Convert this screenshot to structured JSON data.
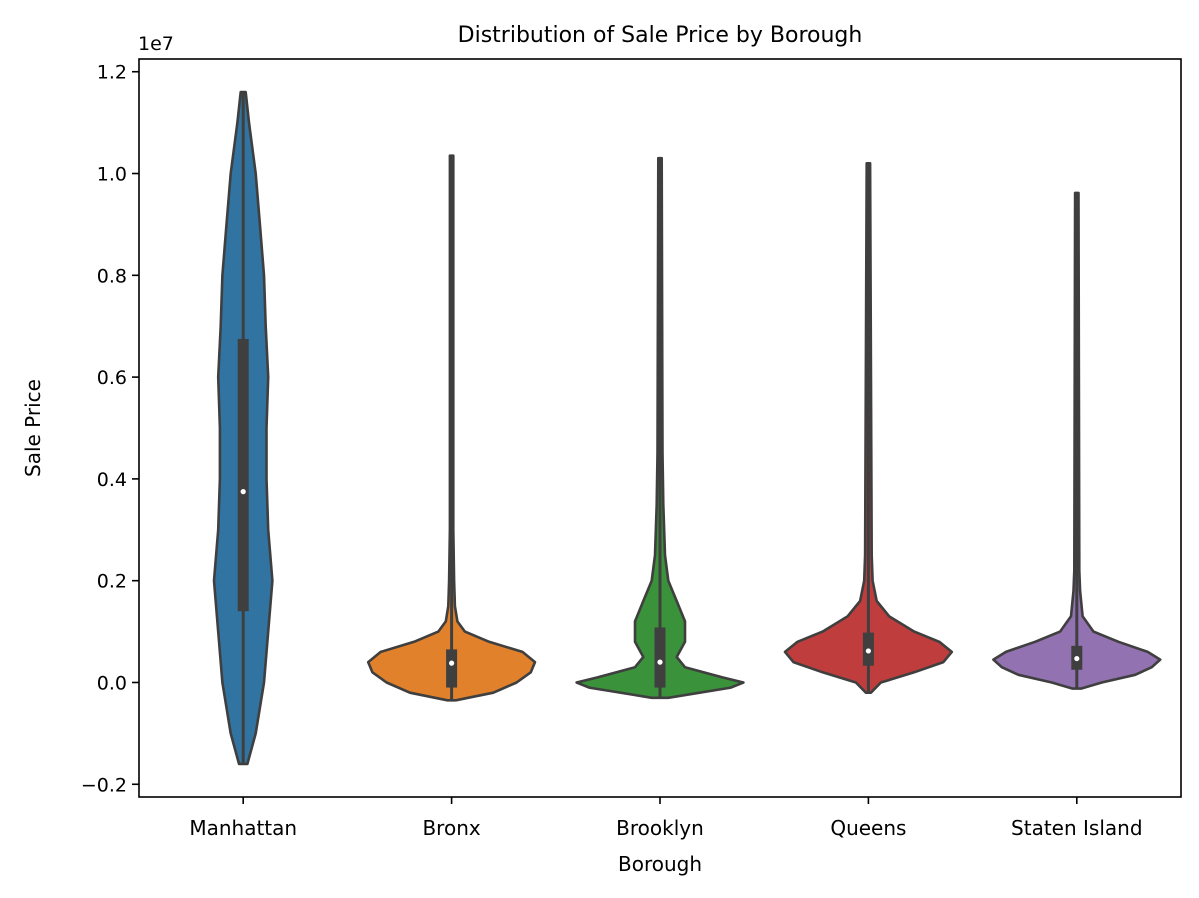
{
  "chart_data": {
    "type": "violin",
    "title": "Distribution of Sale Price by Borough",
    "xlabel": "Borough",
    "ylabel": "Sale Price",
    "y_offset_text": "1e7",
    "ylim": [
      -2250000,
      12250000
    ],
    "yticks": [
      -0.2,
      0.0,
      0.2,
      0.4,
      0.6,
      0.8,
      1.0,
      1.2
    ],
    "ytick_labels": [
      "−0.2",
      "0.0",
      "0.2",
      "0.4",
      "0.6",
      "0.8",
      "1.0",
      "1.2"
    ],
    "categories": [
      "Manhattan",
      "Bronx",
      "Brooklyn",
      "Queens",
      "Staten Island"
    ],
    "grid": false,
    "legend": "none",
    "series": [
      {
        "category": "Manhattan",
        "color": "#3274a1",
        "min": -1600000,
        "max": 11600000,
        "q1": 1400000,
        "median": 3750000,
        "q3": 6750000,
        "density": [
          [
            -1600000,
            0.05
          ],
          [
            -1000000,
            0.15
          ],
          [
            0,
            0.25
          ],
          [
            1000000,
            0.3
          ],
          [
            2000000,
            0.35
          ],
          [
            3000000,
            0.3
          ],
          [
            4000000,
            0.28
          ],
          [
            5000000,
            0.28
          ],
          [
            6000000,
            0.3
          ],
          [
            7000000,
            0.27
          ],
          [
            8000000,
            0.25
          ],
          [
            9000000,
            0.2
          ],
          [
            10000000,
            0.15
          ],
          [
            11000000,
            0.07
          ],
          [
            11600000,
            0.03
          ]
        ]
      },
      {
        "category": "Bronx",
        "color": "#e1812c",
        "min": -350000,
        "max": 10350000,
        "q1": -100000,
        "median": 380000,
        "q3": 650000,
        "density": [
          [
            -350000,
            0.05
          ],
          [
            -200000,
            0.5
          ],
          [
            0,
            0.78
          ],
          [
            200000,
            0.95
          ],
          [
            400000,
            1.0
          ],
          [
            600000,
            0.85
          ],
          [
            800000,
            0.45
          ],
          [
            1000000,
            0.16
          ],
          [
            1200000,
            0.07
          ],
          [
            1500000,
            0.04
          ],
          [
            2000000,
            0.03
          ],
          [
            3000000,
            0.02
          ],
          [
            10350000,
            0.02
          ]
        ]
      },
      {
        "category": "Brooklyn",
        "color": "#3a923a",
        "min": -300000,
        "max": 10300000,
        "q1": -100000,
        "median": 400000,
        "q3": 1080000,
        "density": [
          [
            -300000,
            0.1
          ],
          [
            -100000,
            0.85
          ],
          [
            0,
            1.0
          ],
          [
            100000,
            0.75
          ],
          [
            300000,
            0.3
          ],
          [
            500000,
            0.2
          ],
          [
            800000,
            0.3
          ],
          [
            1200000,
            0.3
          ],
          [
            1600000,
            0.2
          ],
          [
            2000000,
            0.1
          ],
          [
            2500000,
            0.06
          ],
          [
            3500000,
            0.04
          ],
          [
            4500000,
            0.03
          ],
          [
            10300000,
            0.02
          ]
        ]
      },
      {
        "category": "Queens",
        "color": "#c03d3e",
        "min": -200000,
        "max": 10200000,
        "q1": 330000,
        "median": 620000,
        "q3": 980000,
        "density": [
          [
            -200000,
            0.03
          ],
          [
            0,
            0.15
          ],
          [
            200000,
            0.55
          ],
          [
            400000,
            0.9
          ],
          [
            600000,
            1.0
          ],
          [
            800000,
            0.85
          ],
          [
            1000000,
            0.55
          ],
          [
            1300000,
            0.25
          ],
          [
            1600000,
            0.1
          ],
          [
            2000000,
            0.05
          ],
          [
            2500000,
            0.04
          ],
          [
            10200000,
            0.02
          ]
        ]
      },
      {
        "category": "Staten Island",
        "color": "#9372b2",
        "min": -120000,
        "max": 9620000,
        "q1": 250000,
        "median": 470000,
        "q3": 720000,
        "density": [
          [
            -120000,
            0.05
          ],
          [
            0,
            0.3
          ],
          [
            150000,
            0.7
          ],
          [
            300000,
            0.9
          ],
          [
            450000,
            1.0
          ],
          [
            600000,
            0.85
          ],
          [
            800000,
            0.5
          ],
          [
            1000000,
            0.2
          ],
          [
            1300000,
            0.07
          ],
          [
            1800000,
            0.04
          ],
          [
            2200000,
            0.03
          ],
          [
            9620000,
            0.02
          ]
        ]
      }
    ]
  }
}
